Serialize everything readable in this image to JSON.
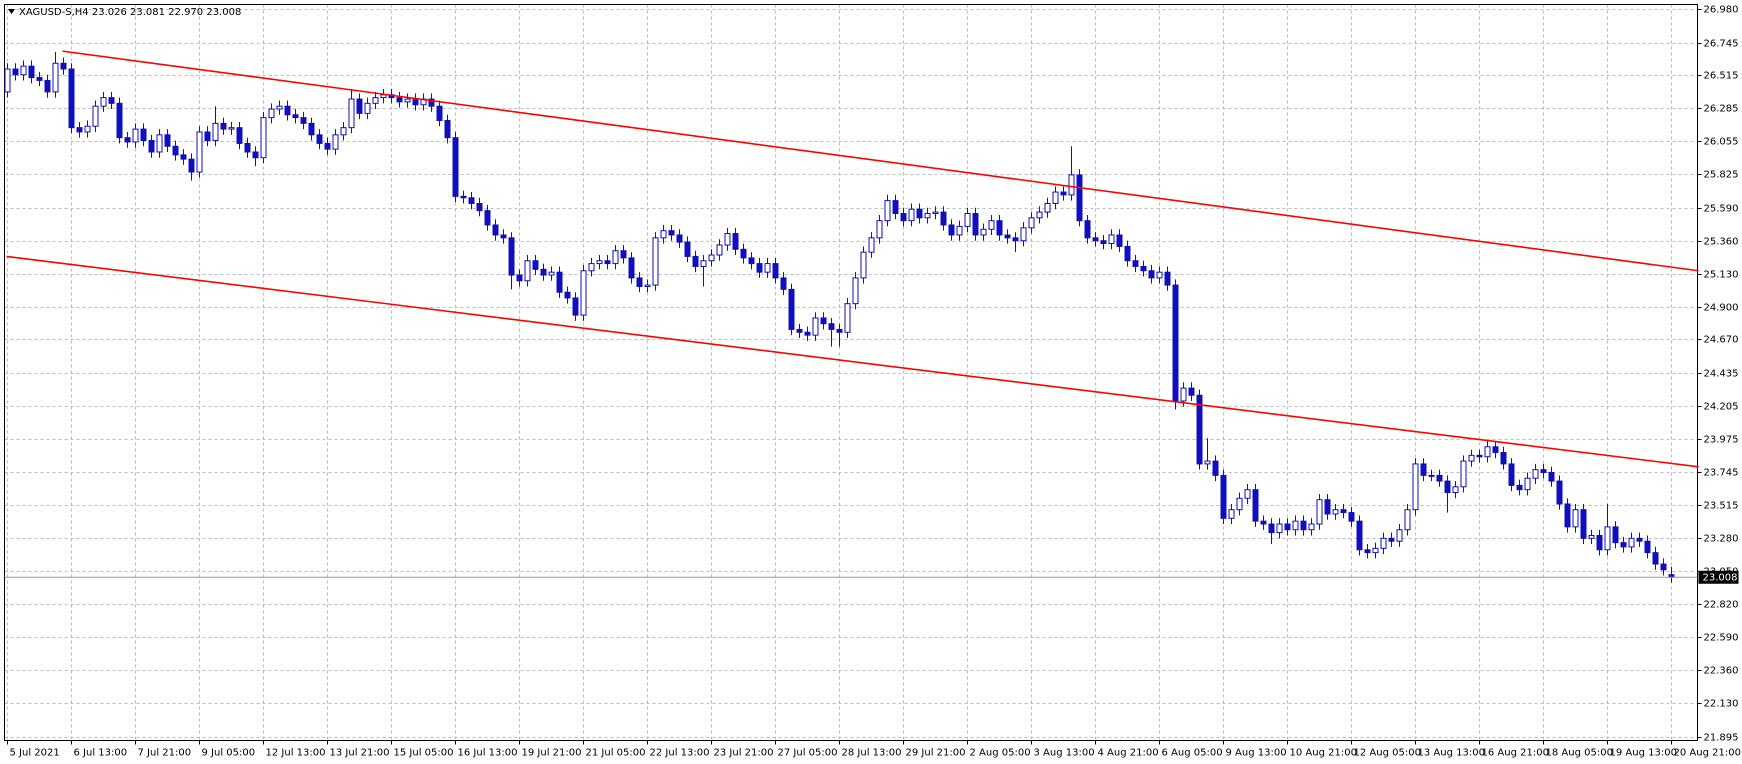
{
  "chart_data": {
    "type": "candlestick",
    "title": "XAGUSD-S,H4  23.026 23.081 22.970 23.008",
    "color": "#0f0fbf",
    "up_color": "#ffffff",
    "grid": true,
    "ylim": [
      21.895,
      26.98
    ],
    "yticks": [
      {
        "value": 26.98,
        "label": "26.980"
      },
      26.745,
      26.515,
      26.285,
      26.055,
      25.825,
      {
        "value": 25.59,
        "label": "25.590"
      },
      {
        "value": 25.36,
        "label": "25.360"
      },
      {
        "value": 25.13,
        "label": "25.130"
      },
      {
        "value": 24.9,
        "label": "24.900"
      },
      {
        "value": 24.67,
        "label": "24.670"
      },
      24.435,
      24.205,
      23.975,
      23.745,
      23.515,
      {
        "value": 23.28,
        "label": "23.280"
      },
      {
        "value": 23.05,
        "label": "23.050"
      },
      {
        "value": 22.82,
        "label": "22.820"
      },
      {
        "value": 22.59,
        "label": "22.590"
      },
      {
        "value": 22.36,
        "label": "22.360"
      },
      {
        "value": 22.13,
        "label": "22.130"
      },
      21.895
    ],
    "current_price": 23.008,
    "categories": [
      "5 Jul 2021",
      null,
      null,
      null,
      null,
      null,
      null,
      null,
      "6 Jul 13:00",
      null,
      null,
      null,
      null,
      null,
      null,
      null,
      "7 Jul 21:00",
      null,
      null,
      null,
      null,
      null,
      null,
      null,
      "9 Jul 05:00",
      null,
      null,
      null,
      null,
      null,
      null,
      null,
      "12 Jul 13:00",
      null,
      null,
      null,
      null,
      null,
      null,
      null,
      "13 Jul 21:00",
      null,
      null,
      null,
      null,
      null,
      null,
      null,
      "15 Jul 05:00",
      null,
      null,
      null,
      null,
      null,
      null,
      null,
      "16 Jul 13:00",
      null,
      null,
      null,
      null,
      null,
      null,
      null,
      "19 Jul 21:00",
      null,
      null,
      null,
      null,
      null,
      null,
      null,
      "21 Jul 05:00",
      null,
      null,
      null,
      null,
      null,
      null,
      null,
      "22 Jul 13:00",
      null,
      null,
      null,
      null,
      null,
      null,
      null,
      "23 Jul 21:00",
      null,
      null,
      null,
      null,
      null,
      null,
      null,
      "27 Jul 05:00",
      null,
      null,
      null,
      null,
      null,
      null,
      null,
      "28 Jul 13:00",
      null,
      null,
      null,
      null,
      null,
      null,
      null,
      "29 Jul 21:00",
      null,
      null,
      null,
      null,
      null,
      null,
      null,
      "2 Aug 05:00",
      null,
      null,
      null,
      null,
      null,
      null,
      null,
      "3 Aug 13:00",
      null,
      null,
      null,
      null,
      null,
      null,
      null,
      "4 Aug 21:00",
      null,
      null,
      null,
      null,
      null,
      null,
      null,
      "6 Aug 05:00",
      null,
      null,
      null,
      null,
      null,
      null,
      null,
      "9 Aug 13:00",
      null,
      null,
      null,
      null,
      null,
      null,
      null,
      "10 Aug 21:00",
      null,
      null,
      null,
      null,
      null,
      null,
      null,
      "12 Aug 05:00",
      null,
      null,
      null,
      null,
      null,
      null,
      null,
      "13 Aug 13:00",
      null,
      null,
      null,
      null,
      null,
      null,
      null,
      "16 Aug 21:00",
      null,
      null,
      null,
      null,
      null,
      null,
      null,
      "18 Aug 05:00",
      null,
      null,
      null,
      null,
      null,
      null,
      null,
      "19 Aug 13:00",
      null,
      null,
      null,
      null,
      null,
      null,
      null,
      "20 Aug 21:00"
    ],
    "open": [
      26.4,
      26.56,
      26.52,
      26.58,
      26.5,
      26.48,
      26.4,
      26.6,
      26.56,
      26.15,
      26.12,
      26.16,
      26.3,
      26.36,
      26.32,
      26.08,
      26.05,
      26.14,
      26.06,
      25.98,
      26.1,
      26.02,
      25.96,
      25.93,
      25.84,
      26.12,
      26.06,
      26.18,
      26.14,
      26.15,
      26.04,
      25.98,
      25.94,
      26.22,
      26.28,
      26.3,
      26.24,
      26.22,
      26.18,
      26.1,
      26.04,
      26.0,
      26.1,
      26.15,
      26.35,
      26.25,
      26.32,
      26.36,
      26.38,
      26.36,
      26.33,
      26.35,
      26.31,
      26.35,
      26.3,
      26.2,
      26.08,
      25.67,
      25.66,
      25.62,
      25.57,
      25.47,
      25.4,
      25.38,
      25.12,
      25.08,
      25.22,
      25.16,
      25.12,
      25.14,
      25.0,
      24.96,
      24.84,
      25.15,
      25.2,
      25.22,
      25.2,
      25.29,
      25.24,
      25.1,
      25.04,
      25.05,
      25.38,
      25.43,
      25.4,
      25.35,
      25.25,
      25.18,
      25.22,
      25.26,
      25.33,
      25.41,
      25.3,
      25.24,
      25.2,
      25.14,
      25.2,
      25.1,
      25.02,
      24.74,
      24.72,
      24.7,
      24.82,
      24.78,
      24.74,
      24.72,
      24.92,
      25.1,
      25.28,
      25.38,
      25.5,
      25.64,
      25.55,
      25.5,
      25.58,
      25.52,
      25.55,
      25.56,
      25.47,
      25.4,
      25.46,
      25.55,
      25.4,
      25.44,
      25.5,
      25.4,
      25.38,
      25.36,
      25.45,
      25.52,
      25.56,
      25.62,
      25.7,
      25.68,
      25.82,
      25.5,
      25.38,
      25.36,
      25.34,
      25.4,
      25.32,
      25.22,
      25.18,
      25.15,
      25.1,
      25.14,
      25.05,
      24.24,
      24.33,
      24.28,
      23.8,
      23.82,
      23.72,
      23.42,
      23.48,
      23.56,
      23.62,
      23.4,
      23.38,
      23.32,
      23.38,
      23.34,
      23.4,
      23.34,
      23.38,
      23.55,
      23.45,
      23.48,
      23.46,
      23.4,
      23.2,
      23.18,
      23.21,
      23.28,
      23.26,
      23.34,
      23.48,
      23.8,
      23.72,
      23.72,
      23.68,
      23.6,
      23.64,
      23.82,
      23.86,
      23.85,
      23.92,
      23.88,
      23.8,
      23.65,
      23.62,
      23.7,
      23.76,
      23.74,
      23.68,
      23.52,
      23.36,
      23.48,
      23.28,
      23.3,
      23.2,
      23.36,
      23.25,
      23.22,
      23.28,
      23.26,
      23.18,
      23.1,
      23.026
    ],
    "high": [
      26.6,
      26.6,
      26.62,
      26.62,
      26.54,
      26.52,
      26.68,
      26.64,
      26.6,
      26.19,
      26.2,
      26.34,
      26.4,
      26.4,
      26.36,
      26.12,
      26.18,
      26.18,
      26.1,
      26.14,
      26.14,
      26.06,
      26.0,
      25.97,
      26.16,
      26.16,
      26.3,
      26.22,
      26.19,
      26.19,
      26.08,
      26.02,
      26.26,
      26.32,
      26.34,
      26.34,
      26.28,
      26.26,
      26.22,
      26.14,
      26.08,
      26.14,
      26.19,
      26.42,
      26.39,
      26.36,
      26.4,
      26.42,
      26.42,
      26.4,
      26.39,
      26.39,
      26.39,
      26.39,
      26.34,
      26.24,
      26.12,
      25.71,
      25.7,
      25.66,
      25.61,
      25.51,
      25.44,
      25.42,
      25.16,
      25.26,
      25.26,
      25.2,
      25.18,
      25.18,
      25.04,
      25.0,
      25.19,
      25.24,
      25.26,
      25.26,
      25.33,
      25.33,
      25.28,
      25.14,
      25.09,
      25.42,
      25.47,
      25.47,
      25.44,
      25.39,
      25.29,
      25.26,
      25.3,
      25.37,
      25.45,
      25.45,
      25.34,
      25.28,
      25.24,
      25.24,
      25.24,
      25.14,
      25.06,
      24.78,
      24.76,
      24.86,
      24.86,
      24.82,
      24.78,
      24.96,
      25.14,
      25.32,
      25.42,
      25.54,
      25.68,
      25.68,
      25.59,
      25.62,
      25.62,
      25.59,
      25.6,
      25.6,
      25.51,
      25.5,
      25.59,
      25.59,
      25.48,
      25.54,
      25.54,
      25.44,
      25.42,
      25.49,
      25.56,
      25.6,
      25.66,
      25.74,
      25.74,
      26.02,
      25.86,
      25.54,
      25.42,
      25.4,
      25.44,
      25.44,
      25.36,
      25.26,
      25.22,
      25.19,
      25.18,
      25.18,
      25.09,
      24.37,
      24.37,
      24.32,
      23.98,
      23.86,
      23.76,
      23.52,
      23.6,
      23.66,
      23.66,
      23.44,
      23.42,
      23.42,
      23.42,
      23.44,
      23.44,
      23.42,
      23.59,
      23.59,
      23.52,
      23.52,
      23.5,
      23.44,
      23.24,
      23.25,
      23.32,
      23.32,
      23.38,
      23.52,
      23.84,
      23.84,
      23.76,
      23.76,
      23.72,
      23.68,
      23.86,
      23.9,
      23.9,
      23.96,
      23.96,
      23.92,
      23.84,
      23.69,
      23.74,
      23.8,
      23.8,
      23.78,
      23.72,
      23.56,
      23.52,
      23.52,
      23.34,
      23.34,
      23.52,
      23.4,
      23.29,
      23.32,
      23.32,
      23.3,
      23.22,
      23.14,
      23.081
    ],
    "low": [
      26.36,
      26.48,
      26.48,
      26.46,
      26.44,
      26.36,
      26.36,
      26.52,
      26.11,
      26.08,
      26.08,
      26.12,
      26.26,
      26.28,
      26.04,
      26.01,
      26.01,
      26.02,
      25.94,
      25.94,
      25.98,
      25.92,
      25.89,
      25.78,
      25.8,
      26.02,
      26.02,
      26.1,
      26.1,
      26.0,
      25.94,
      25.88,
      25.9,
      26.18,
      26.24,
      26.2,
      26.18,
      26.14,
      26.06,
      26.0,
      25.96,
      25.96,
      26.06,
      26.11,
      26.21,
      26.21,
      26.28,
      26.32,
      26.32,
      26.29,
      26.29,
      26.27,
      26.27,
      26.26,
      26.16,
      26.04,
      25.63,
      25.62,
      25.58,
      25.53,
      25.43,
      25.36,
      25.34,
      25.02,
      25.04,
      25.04,
      25.12,
      25.08,
      25.08,
      24.96,
      24.92,
      24.8,
      24.8,
      25.11,
      25.16,
      25.16,
      25.16,
      25.2,
      25.06,
      25.0,
      25.0,
      25.01,
      25.34,
      25.36,
      25.31,
      25.21,
      25.14,
      25.04,
      25.18,
      25.22,
      25.29,
      25.26,
      25.2,
      25.16,
      25.1,
      25.1,
      25.06,
      24.98,
      24.7,
      24.68,
      24.66,
      24.66,
      24.74,
      24.62,
      24.62,
      24.68,
      24.88,
      25.06,
      25.24,
      25.34,
      25.46,
      25.51,
      25.46,
      25.46,
      25.48,
      25.48,
      25.51,
      25.43,
      25.36,
      25.36,
      25.42,
      25.36,
      25.36,
      25.4,
      25.36,
      25.34,
      25.28,
      25.32,
      25.41,
      25.48,
      25.52,
      25.58,
      25.64,
      25.64,
      25.46,
      25.34,
      25.32,
      25.3,
      25.3,
      25.28,
      25.18,
      25.14,
      25.11,
      25.06,
      25.06,
      25.01,
      24.18,
      24.2,
      24.24,
      23.76,
      23.76,
      23.68,
      23.38,
      23.38,
      23.44,
      23.52,
      23.36,
      23.34,
      23.24,
      23.28,
      23.3,
      23.3,
      23.3,
      23.3,
      23.34,
      23.41,
      23.41,
      23.42,
      23.36,
      23.16,
      23.14,
      23.14,
      23.17,
      23.22,
      23.22,
      23.3,
      23.44,
      23.68,
      23.68,
      23.64,
      23.46,
      23.56,
      23.6,
      23.78,
      23.81,
      23.81,
      23.84,
      23.76,
      23.61,
      23.58,
      23.58,
      23.66,
      23.7,
      23.64,
      23.48,
      23.32,
      23.32,
      23.24,
      23.24,
      23.16,
      23.16,
      23.21,
      23.18,
      23.18,
      23.22,
      23.14,
      23.06,
      23.02,
      22.97
    ],
    "close": [
      26.56,
      26.52,
      26.58,
      26.5,
      26.48,
      26.4,
      26.6,
      26.56,
      26.15,
      26.12,
      26.16,
      26.3,
      26.36,
      26.32,
      26.08,
      26.05,
      26.14,
      26.06,
      25.98,
      26.1,
      26.02,
      25.96,
      25.93,
      25.84,
      26.12,
      26.06,
      26.18,
      26.14,
      26.15,
      26.04,
      25.98,
      25.94,
      26.22,
      26.28,
      26.3,
      26.24,
      26.22,
      26.18,
      26.1,
      26.04,
      26.0,
      26.1,
      26.15,
      26.35,
      26.25,
      26.32,
      26.36,
      26.38,
      26.36,
      26.33,
      26.35,
      26.31,
      26.35,
      26.3,
      26.2,
      26.08,
      25.67,
      25.66,
      25.62,
      25.57,
      25.47,
      25.4,
      25.38,
      25.12,
      25.08,
      25.22,
      25.16,
      25.12,
      25.14,
      25.0,
      24.96,
      24.84,
      25.15,
      25.2,
      25.22,
      25.2,
      25.29,
      25.24,
      25.1,
      25.04,
      25.05,
      25.38,
      25.43,
      25.4,
      25.35,
      25.25,
      25.18,
      25.22,
      25.26,
      25.33,
      25.41,
      25.3,
      25.24,
      25.2,
      25.14,
      25.2,
      25.1,
      25.02,
      24.74,
      24.72,
      24.7,
      24.82,
      24.78,
      24.74,
      24.72,
      24.92,
      25.1,
      25.28,
      25.38,
      25.5,
      25.64,
      25.55,
      25.5,
      25.58,
      25.52,
      25.55,
      25.56,
      25.47,
      25.4,
      25.46,
      25.55,
      25.4,
      25.44,
      25.5,
      25.4,
      25.38,
      25.36,
      25.45,
      25.52,
      25.56,
      25.62,
      25.7,
      25.68,
      25.82,
      25.5,
      25.38,
      25.36,
      25.34,
      25.4,
      25.32,
      25.22,
      25.18,
      25.15,
      25.1,
      25.14,
      25.05,
      24.24,
      24.33,
      24.28,
      23.8,
      23.82,
      23.72,
      23.42,
      23.48,
      23.56,
      23.62,
      23.4,
      23.38,
      23.32,
      23.38,
      23.34,
      23.4,
      23.34,
      23.38,
      23.55,
      23.45,
      23.48,
      23.46,
      23.4,
      23.2,
      23.18,
      23.21,
      23.28,
      23.26,
      23.34,
      23.48,
      23.8,
      23.72,
      23.72,
      23.68,
      23.6,
      23.64,
      23.82,
      23.86,
      23.85,
      23.92,
      23.88,
      23.8,
      23.65,
      23.62,
      23.7,
      23.76,
      23.74,
      23.68,
      23.52,
      23.36,
      23.48,
      23.28,
      23.3,
      23.2,
      23.36,
      23.25,
      23.22,
      23.28,
      23.26,
      23.18,
      23.1,
      23.06,
      23.008
    ],
    "trend_lines": [
      {
        "color": "#ff0000",
        "x": [
          7,
          211.5
        ],
        "y": [
          26.685,
          25.15
        ]
      },
      {
        "color": "#ff0000",
        "x": [
          0,
          211.5
        ],
        "y": [
          25.25,
          23.78
        ]
      }
    ]
  }
}
